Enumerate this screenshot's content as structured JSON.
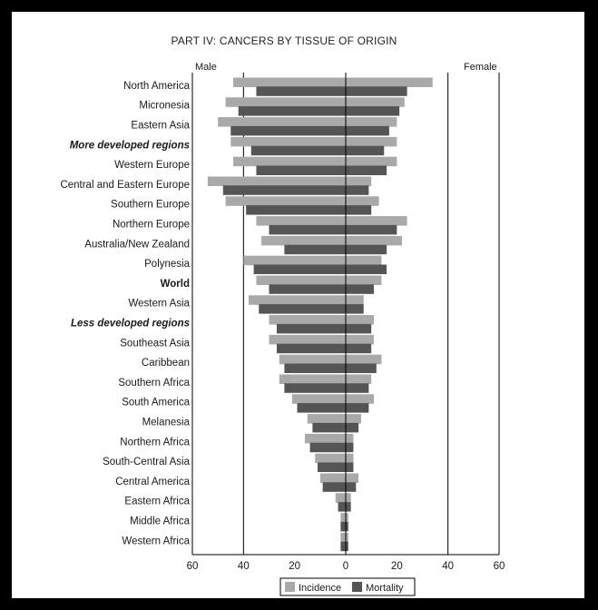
{
  "chart_data": {
    "type": "bar",
    "orientation": "horizontal-diverging",
    "title": "PART IV:  CANCERS BY TISSUE OF ORIGIN",
    "left_label": "Male",
    "right_label": "Female",
    "categories": [
      {
        "name": "North America",
        "style": "normal"
      },
      {
        "name": "Micronesia",
        "style": "normal"
      },
      {
        "name": "Eastern Asia",
        "style": "normal"
      },
      {
        "name": "More developed regions",
        "style": "italic-bold"
      },
      {
        "name": "Western Europe",
        "style": "normal"
      },
      {
        "name": "Central and Eastern Europe",
        "style": "normal"
      },
      {
        "name": "Southern Europe",
        "style": "normal"
      },
      {
        "name": "Northern Europe",
        "style": "normal"
      },
      {
        "name": "Australia/New Zealand",
        "style": "normal"
      },
      {
        "name": "Polynesia",
        "style": "normal"
      },
      {
        "name": "World",
        "style": "bold"
      },
      {
        "name": "Western Asia",
        "style": "normal"
      },
      {
        "name": "Less developed regions",
        "style": "italic-bold"
      },
      {
        "name": "Southeast Asia",
        "style": "normal"
      },
      {
        "name": "Caribbean",
        "style": "normal"
      },
      {
        "name": "Southern Africa",
        "style": "normal"
      },
      {
        "name": "South America",
        "style": "normal"
      },
      {
        "name": "Melanesia",
        "style": "normal"
      },
      {
        "name": "Northern Africa",
        "style": "normal"
      },
      {
        "name": "South-Central Asia",
        "style": "normal"
      },
      {
        "name": "Central America",
        "style": "normal"
      },
      {
        "name": "Eastern Africa",
        "style": "normal"
      },
      {
        "name": "Middle Africa",
        "style": "normal"
      },
      {
        "name": "Western Africa",
        "style": "normal"
      }
    ],
    "series": [
      {
        "name": "Incidence",
        "color": "#a9a9a9",
        "male": [
          44,
          47,
          50,
          45,
          44,
          54,
          47,
          35,
          33,
          40,
          35,
          38,
          30,
          30,
          26,
          26,
          21,
          15,
          16,
          12,
          10,
          4,
          2,
          2
        ],
        "female": [
          34,
          23,
          20,
          20,
          20,
          10,
          13,
          24,
          22,
          14,
          14,
          7,
          11,
          11,
          14,
          10,
          11,
          6,
          3,
          3,
          5,
          2,
          1,
          1
        ]
      },
      {
        "name": "Mortality",
        "color": "#555555",
        "male": [
          35,
          42,
          45,
          37,
          35,
          48,
          39,
          30,
          24,
          36,
          30,
          34,
          27,
          27,
          24,
          24,
          19,
          13,
          14,
          11,
          9,
          3,
          2,
          2
        ],
        "female": [
          24,
          21,
          17,
          15,
          16,
          9,
          10,
          20,
          16,
          16,
          11,
          7,
          10,
          10,
          12,
          9,
          9,
          5,
          3,
          3,
          4,
          2,
          1,
          1
        ]
      }
    ],
    "x_ticks": [
      60,
      40,
      20,
      0,
      20,
      40,
      60
    ],
    "xlim": [
      -60,
      60
    ],
    "grid_at": [
      -40,
      0,
      40
    ],
    "legend_position": "bottom-center"
  },
  "legend": {
    "incidence_label": "Incidence",
    "mortality_label": "Mortality"
  }
}
